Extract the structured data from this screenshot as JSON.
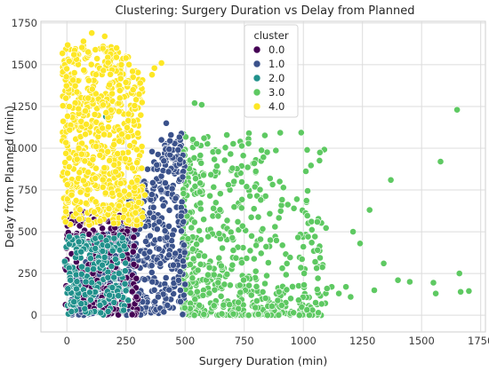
{
  "chart_data": {
    "type": "scatter",
    "title": "Clustering: Surgery Duration vs Delay from Planned",
    "xlabel": "Surgery Duration (min)",
    "ylabel": "Delay from Planned (min)",
    "xlim": [
      -110,
      1770
    ],
    "ylim": [
      -100,
      1760
    ],
    "xticks": [
      0,
      250,
      500,
      750,
      1000,
      1250,
      1500,
      1750
    ],
    "yticks": [
      0,
      250,
      500,
      750,
      1000,
      1250,
      1500,
      1750
    ],
    "grid": true,
    "legend": {
      "title": "cluster",
      "placement": "top-center"
    },
    "series": [
      {
        "name": "0.0",
        "color": "#440154",
        "region": {
          "x": [
            -10,
            300
          ],
          "y": [
            0,
            640
          ]
        },
        "points": [
          [
            20,
            560
          ],
          [
            60,
            600
          ],
          [
            95,
            610
          ],
          [
            150,
            520
          ],
          [
            240,
            480
          ],
          [
            180,
            430
          ],
          [
            40,
            320
          ],
          [
            110,
            250
          ],
          [
            200,
            150
          ],
          [
            70,
            90
          ],
          [
            260,
            60
          ],
          [
            130,
            20
          ],
          [
            30,
            180
          ],
          [
            210,
            330
          ],
          [
            90,
            440
          ],
          [
            280,
            380
          ],
          [
            160,
            220
          ],
          [
            250,
            560
          ],
          [
            60,
            620
          ],
          [
            115,
            40
          ]
        ]
      },
      {
        "name": "1.0",
        "color": "#3b528b",
        "region": {
          "x": [
            20,
            500
          ],
          "y": [
            0,
            1100
          ]
        },
        "points": [
          [
            420,
            1150
          ],
          [
            440,
            1080
          ],
          [
            400,
            1050
          ],
          [
            470,
            990
          ],
          [
            330,
            780
          ],
          [
            380,
            900
          ],
          [
            300,
            620
          ],
          [
            250,
            450
          ],
          [
            350,
            380
          ],
          [
            450,
            300
          ],
          [
            480,
            150
          ],
          [
            320,
            80
          ],
          [
            410,
            20
          ],
          [
            230,
            260
          ],
          [
            390,
            560
          ],
          [
            460,
            700
          ],
          [
            360,
            980
          ],
          [
            280,
            540
          ],
          [
            430,
            860
          ],
          [
            495,
            420
          ],
          [
            200,
            50
          ],
          [
            150,
            120
          ]
        ]
      },
      {
        "name": "2.0",
        "color": "#21918c",
        "region": {
          "x": [
            -10,
            260
          ],
          "y": [
            0,
            480
          ]
        },
        "points": [
          [
            10,
            470
          ],
          [
            50,
            440
          ],
          [
            120,
            400
          ],
          [
            200,
            460
          ],
          [
            150,
            300
          ],
          [
            220,
            250
          ],
          [
            80,
            200
          ],
          [
            180,
            120
          ],
          [
            30,
            80
          ],
          [
            240,
            30
          ],
          [
            100,
            340
          ],
          [
            165,
            1190
          ],
          [
            140,
            60
          ],
          [
            60,
            380
          ]
        ]
      },
      {
        "name": "3.0",
        "color": "#5ec962",
        "region": {
          "x": [
            490,
            1100
          ],
          "y": [
            0,
            1100
          ]
        },
        "points": [
          [
            1650,
            1230
          ],
          [
            1580,
            920
          ],
          [
            1370,
            810
          ],
          [
            1280,
            630
          ],
          [
            1210,
            500
          ],
          [
            1240,
            430
          ],
          [
            1340,
            310
          ],
          [
            1120,
            170
          ],
          [
            1060,
            390
          ],
          [
            1020,
            470
          ],
          [
            880,
            530
          ],
          [
            820,
            690
          ],
          [
            760,
            770
          ],
          [
            700,
            880
          ],
          [
            640,
            980
          ],
          [
            580,
            1060
          ],
          [
            570,
            1260
          ],
          [
            540,
            1270
          ],
          [
            900,
            800
          ],
          [
            960,
            640
          ],
          [
            1000,
            410
          ],
          [
            1050,
            320
          ],
          [
            1100,
            160
          ],
          [
            1150,
            130
          ],
          [
            1200,
            110
          ],
          [
            1300,
            150
          ],
          [
            1400,
            210
          ],
          [
            1550,
            195
          ],
          [
            1560,
            130
          ],
          [
            1660,
            250
          ],
          [
            1665,
            140
          ],
          [
            1700,
            145
          ],
          [
            1450,
            200
          ],
          [
            860,
            450
          ],
          [
            780,
            120
          ],
          [
            700,
            300
          ],
          [
            620,
            640
          ],
          [
            560,
            60
          ],
          [
            980,
            90
          ],
          [
            1180,
            170
          ]
        ]
      },
      {
        "name": "4.0",
        "color": "#fde725",
        "region": {
          "x": [
            -20,
            320
          ],
          "y": [
            540,
            1620
          ]
        },
        "points": [
          [
            105,
            1690
          ],
          [
            160,
            1670
          ],
          [
            70,
            1640
          ],
          [
            210,
            1600
          ],
          [
            30,
            1560
          ],
          [
            250,
            1540
          ],
          [
            230,
            1500
          ],
          [
            400,
            1510
          ],
          [
            370,
            1480
          ],
          [
            360,
            1440
          ],
          [
            310,
            1390
          ],
          [
            280,
            1350
          ],
          [
            90,
            1300
          ],
          [
            10,
            1250
          ],
          [
            150,
            1120
          ],
          [
            300,
            1090
          ],
          [
            50,
            1000
          ],
          [
            200,
            900
          ],
          [
            120,
            820
          ],
          [
            20,
            720
          ],
          [
            260,
            660
          ],
          [
            330,
            720
          ],
          [
            180,
            1380
          ],
          [
            220,
            1220
          ]
        ]
      }
    ]
  }
}
